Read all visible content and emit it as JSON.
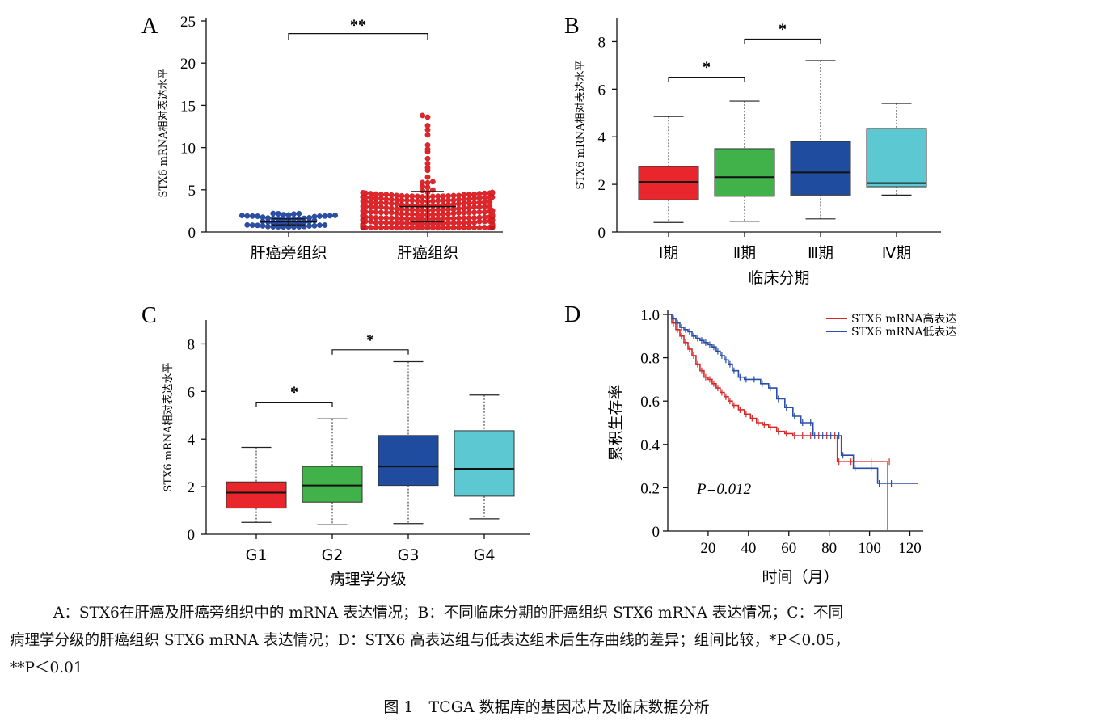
{
  "chart_data": [
    {
      "panel": "A",
      "type": "scatter",
      "ylabel": "STX6 mRNA相对表达水平",
      "ylim": [
        0,
        25
      ],
      "yticks": [
        0,
        5,
        10,
        15,
        20,
        25
      ],
      "categories": [
        "肝癌旁组织",
        "肝癌组织"
      ],
      "groups": [
        {
          "name": "肝癌旁组织",
          "color": "#2b4fa8",
          "n": 50,
          "mean": 1.2,
          "sd": 0.35,
          "max": 2.2,
          "min": 0.6
        },
        {
          "name": "肝癌组织",
          "color": "#e0262a",
          "n": 371,
          "mean": 3.0,
          "sd": 1.8,
          "max": 13.8,
          "min": 0.5,
          "high_points": [
            13.8,
            13.6,
            12.6,
            12.1,
            11.5,
            10.3,
            9.8,
            9.5,
            8.7,
            8.1,
            7.6,
            7.3
          ]
        }
      ],
      "significance": [
        {
          "from": "肝癌旁组织",
          "to": "肝癌组织",
          "label": "**",
          "y": 23.5
        }
      ]
    },
    {
      "panel": "B",
      "type": "box",
      "ylabel": "STX6 mRNA相对表达水平",
      "xlabel": "临床分期",
      "ylim": [
        0,
        9
      ],
      "yticks": [
        0,
        2,
        4,
        6,
        8
      ],
      "categories": [
        "Ⅰ期",
        "Ⅱ期",
        "Ⅲ期",
        "Ⅳ期"
      ],
      "boxes": [
        {
          "name": "Ⅰ期",
          "color": "#e8262b",
          "whisker_low": 0.4,
          "q1": 1.35,
          "median": 2.1,
          "q3": 2.75,
          "whisker_high": 4.85
        },
        {
          "name": "Ⅱ期",
          "color": "#41b14a",
          "whisker_low": 0.45,
          "q1": 1.5,
          "median": 2.3,
          "q3": 3.5,
          "whisker_high": 5.5
        },
        {
          "name": "Ⅲ期",
          "color": "#1f4c9e",
          "whisker_low": 0.55,
          "q1": 1.55,
          "median": 2.5,
          "q3": 3.8,
          "whisker_high": 7.2
        },
        {
          "name": "Ⅳ期",
          "color": "#5bc8d2",
          "whisker_low": 1.55,
          "q1": 1.9,
          "median": 2.05,
          "q3": 4.35,
          "whisker_high": 5.4
        }
      ],
      "significance": [
        {
          "from": "Ⅰ期",
          "to": "Ⅱ期",
          "label": "*",
          "y": 6.5
        },
        {
          "from": "Ⅱ期",
          "to": "Ⅲ期",
          "label": "*",
          "y": 8.1
        }
      ]
    },
    {
      "panel": "C",
      "type": "box",
      "ylabel": "STX6 mRNA相对表达水平",
      "xlabel": "病理学分级",
      "ylim": [
        0,
        9
      ],
      "yticks": [
        0,
        2,
        4,
        6,
        8
      ],
      "categories": [
        "G1",
        "G2",
        "G3",
        "G4"
      ],
      "boxes": [
        {
          "name": "G1",
          "color": "#e8262b",
          "whisker_low": 0.5,
          "q1": 1.1,
          "median": 1.75,
          "q3": 2.2,
          "whisker_high": 3.65
        },
        {
          "name": "G2",
          "color": "#41b14a",
          "whisker_low": 0.4,
          "q1": 1.35,
          "median": 2.05,
          "q3": 2.85,
          "whisker_high": 4.85
        },
        {
          "name": "G3",
          "color": "#1f4c9e",
          "whisker_low": 0.45,
          "q1": 2.05,
          "median": 2.85,
          "q3": 4.15,
          "whisker_high": 7.25
        },
        {
          "name": "G4",
          "color": "#5bc8d2",
          "whisker_low": 0.65,
          "q1": 1.6,
          "median": 2.75,
          "q3": 4.35,
          "whisker_high": 5.85
        }
      ],
      "significance": [
        {
          "from": "G1",
          "to": "G2",
          "label": "*",
          "y": 5.55
        },
        {
          "from": "G2",
          "to": "G3",
          "label": "*",
          "y": 7.75
        }
      ]
    },
    {
      "panel": "D",
      "type": "line",
      "subtype": "kaplan-meier",
      "ylabel": "累积生存率",
      "xlabel": "时间（月）",
      "xlim": [
        0,
        125
      ],
      "ylim": [
        0,
        1.0
      ],
      "xticks": [
        20,
        40,
        60,
        80,
        100,
        120
      ],
      "yticks": [
        0,
        0.2,
        0.4,
        0.6,
        0.8,
        1.0
      ],
      "annotation": "P=0.012",
      "series": [
        {
          "name": "STX6 mRNA高表达",
          "color": "#d62a2a",
          "x": [
            0,
            2,
            4,
            6,
            8,
            10,
            12,
            14,
            16,
            18,
            20,
            22,
            24,
            26,
            28,
            30,
            32,
            35,
            38,
            41,
            44,
            47,
            50,
            54,
            58,
            62,
            66,
            70,
            74,
            78,
            82,
            84,
            90,
            100,
            109,
            109
          ],
          "y": [
            1.0,
            0.96,
            0.93,
            0.9,
            0.87,
            0.84,
            0.81,
            0.77,
            0.74,
            0.71,
            0.7,
            0.68,
            0.66,
            0.64,
            0.62,
            0.6,
            0.58,
            0.56,
            0.54,
            0.52,
            0.5,
            0.49,
            0.48,
            0.46,
            0.45,
            0.44,
            0.44,
            0.44,
            0.44,
            0.44,
            0.44,
            0.32,
            0.32,
            0.32,
            0.32,
            0.0
          ]
        },
        {
          "name": "STX6 mRNA低表达",
          "color": "#2a4fa8",
          "x": [
            0,
            2,
            4,
            6,
            8,
            10,
            12,
            14,
            16,
            18,
            20,
            22,
            24,
            26,
            28,
            30,
            32,
            35,
            38,
            42,
            46,
            50,
            54,
            58,
            62,
            66,
            70,
            72,
            76,
            80,
            84,
            86,
            92,
            100,
            104,
            110,
            124
          ],
          "y": [
            1.0,
            0.98,
            0.96,
            0.94,
            0.93,
            0.92,
            0.9,
            0.89,
            0.88,
            0.87,
            0.86,
            0.85,
            0.83,
            0.81,
            0.79,
            0.77,
            0.74,
            0.71,
            0.7,
            0.7,
            0.68,
            0.66,
            0.61,
            0.57,
            0.53,
            0.5,
            0.5,
            0.44,
            0.44,
            0.44,
            0.44,
            0.35,
            0.29,
            0.29,
            0.22,
            0.22,
            0.22
          ]
        }
      ]
    }
  ],
  "panels": {
    "A": "A",
    "B": "B",
    "C": "C",
    "D": "D"
  },
  "caption": {
    "line1": "A：STX6在肝癌及肝癌旁组织中的 mRNA 表达情况；B：不同临床分期的肝癌组织 STX6 mRNA 表达情况；C：不同",
    "line2": "病理学分级的肝癌组织 STX6 mRNA 表达情况；D：STX6 高表达组与低表达组术后生存曲线的差异；组间比较，*P＜0.05，",
    "line3": "**P＜0.01"
  },
  "figure_title": "图 1　TCGA 数据库的基因芯片及临床数据分析"
}
